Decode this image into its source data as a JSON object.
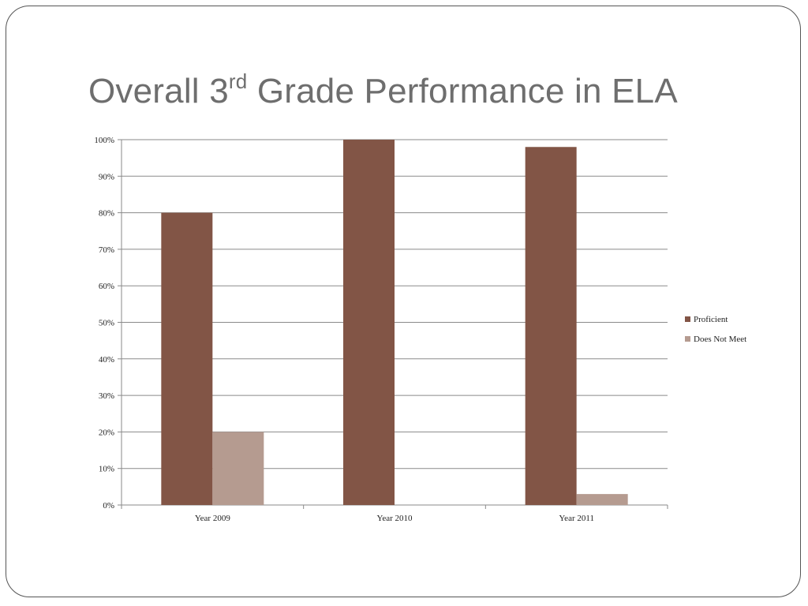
{
  "slide": {
    "title_main": "Overall 3",
    "title_sup": "rd",
    "title_rest": " Grade Performance in ELA"
  },
  "chart_data": {
    "type": "bar",
    "title": "",
    "xlabel": "",
    "ylabel": "",
    "categories": [
      "Year 2009",
      "Year 2010",
      "Year 2011"
    ],
    "series": [
      {
        "name": "Proficient",
        "values": [
          80,
          100,
          98
        ],
        "color": "#825546"
      },
      {
        "name": "Does Not Meet",
        "values": [
          20,
          0,
          3
        ],
        "color": "#b59b90"
      }
    ],
    "ylim": [
      0,
      100
    ],
    "yticks": [
      0,
      10,
      20,
      30,
      40,
      50,
      60,
      70,
      80,
      90,
      100
    ],
    "ytick_format": "percent",
    "grid": true,
    "legend_position": "right"
  }
}
